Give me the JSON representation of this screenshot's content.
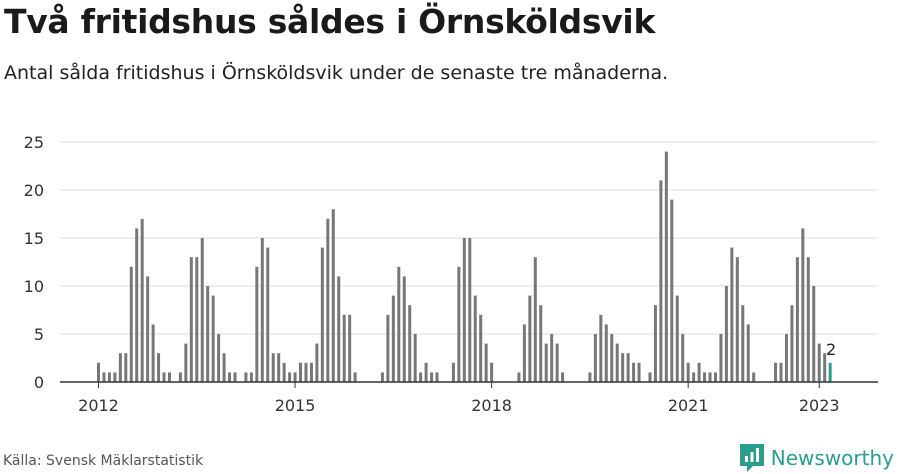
{
  "title": "Två fritidshus såldes i Örnsköldsvik",
  "subtitle": "Antal sålda fritidshus i Örnsköldsvik under de senaste tre månaderna.",
  "source": "Källa: Svensk Mäklarstatistik",
  "brand": {
    "name": "Newsworthy",
    "icon": "newsworthy-logo-icon"
  },
  "colors": {
    "bar": "#777777",
    "highlight": "#2a9d8f",
    "grid": "#dddddd",
    "axis": "#333333"
  },
  "chart_data": {
    "type": "bar",
    "start": "2012-01",
    "frequency": "monthly",
    "x_tick_labels": [
      "2012",
      "2015",
      "2018",
      "2021",
      "2023"
    ],
    "y_ticks": [
      0,
      5,
      10,
      15,
      20,
      25
    ],
    "ylim": [
      0,
      25
    ],
    "grid": true,
    "highlight_last": true,
    "last_label": "2",
    "values": [
      2,
      1,
      1,
      1,
      3,
      3,
      12,
      16,
      17,
      11,
      6,
      3,
      1,
      1,
      0,
      1,
      4,
      13,
      13,
      15,
      10,
      9,
      5,
      3,
      1,
      1,
      0,
      1,
      1,
      12,
      15,
      14,
      3,
      3,
      2,
      1,
      1,
      2,
      2,
      2,
      4,
      14,
      17,
      18,
      11,
      7,
      7,
      1,
      0,
      0,
      0,
      0,
      1,
      7,
      9,
      12,
      11,
      8,
      5,
      1,
      2,
      1,
      1,
      0,
      0,
      2,
      12,
      15,
      15,
      9,
      7,
      4,
      2,
      0,
      0,
      0,
      0,
      1,
      6,
      9,
      13,
      8,
      4,
      5,
      4,
      1,
      0,
      0,
      0,
      0,
      1,
      5,
      7,
      6,
      5,
      4,
      3,
      3,
      2,
      2,
      0,
      1,
      8,
      21,
      24,
      19,
      9,
      5,
      2,
      1,
      2,
      1,
      1,
      1,
      5,
      10,
      14,
      13,
      8,
      6,
      1,
      0,
      0,
      0,
      2,
      2,
      5,
      8,
      13,
      16,
      13,
      10,
      4,
      3,
      2
    ]
  }
}
